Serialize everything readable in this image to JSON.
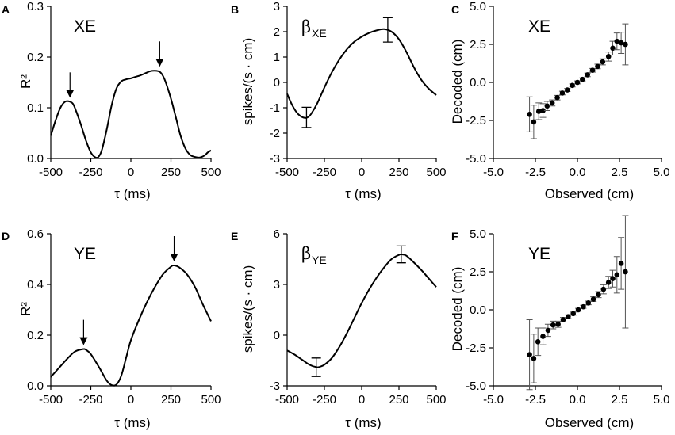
{
  "chart_data": [
    {
      "id": "A",
      "type": "line",
      "name": "XE",
      "xlabel": "τ (ms)",
      "ylabel": "R²",
      "xlim": [
        -500,
        500
      ],
      "ylim": [
        0,
        0.3
      ],
      "xticks": [
        -500,
        -250,
        0,
        250,
        500
      ],
      "xtick_labels": [
        "-500",
        "-250",
        "0",
        "250",
        "500"
      ],
      "yticks": [
        0,
        0.1,
        0.2,
        0.3
      ],
      "ytick_labels": [
        "0.0",
        "0.1",
        "0.2",
        "0.3"
      ],
      "series": [
        {
          "name": "R²",
          "x": [
            -500,
            -470,
            -440,
            -410,
            -380,
            -360,
            -340,
            -310,
            -280,
            -250,
            -220,
            -200,
            -180,
            -150,
            -120,
            -90,
            -60,
            -30,
            0,
            30,
            60,
            90,
            120,
            150,
            180,
            200,
            220,
            250,
            280,
            310,
            340,
            370,
            400,
            430,
            460,
            480,
            500
          ],
          "y": [
            0.045,
            0.075,
            0.1,
            0.112,
            0.112,
            0.107,
            0.092,
            0.065,
            0.035,
            0.012,
            0.002,
            0.004,
            0.018,
            0.058,
            0.105,
            0.138,
            0.152,
            0.156,
            0.158,
            0.161,
            0.164,
            0.168,
            0.172,
            0.173,
            0.171,
            0.163,
            0.148,
            0.118,
            0.082,
            0.045,
            0.02,
            0.007,
            0.003,
            0.002,
            0.006,
            0.012,
            0.016
          ]
        }
      ],
      "arrows": [
        {
          "x": -380,
          "y": 0.112
        },
        {
          "x": 180,
          "y": 0.173
        }
      ]
    },
    {
      "id": "B",
      "type": "line",
      "name": "β",
      "name_sub": "XE",
      "xlabel": "τ (ms)",
      "ylabel": "spikes/(s · cm)",
      "xlim": [
        -500,
        500
      ],
      "ylim": [
        -3,
        3
      ],
      "xticks": [
        -500,
        -250,
        0,
        250,
        500
      ],
      "xtick_labels": [
        "-500",
        "-250",
        "0",
        "250",
        "500"
      ],
      "yticks": [
        -3,
        -2,
        -1,
        0,
        1,
        2,
        3
      ],
      "ytick_labels": [
        "-3",
        "-2",
        "-1",
        "0",
        "1",
        "2",
        "3"
      ],
      "series": [
        {
          "name": "beta",
          "x": [
            -500,
            -470,
            -440,
            -410,
            -380,
            -360,
            -340,
            -300,
            -250,
            -200,
            -150,
            -100,
            -50,
            0,
            50,
            100,
            150,
            200,
            250,
            300,
            350,
            400,
            450,
            500
          ],
          "y": [
            -0.45,
            -0.85,
            -1.15,
            -1.33,
            -1.4,
            -1.37,
            -1.25,
            -0.85,
            -0.2,
            0.4,
            0.9,
            1.3,
            1.6,
            1.8,
            1.95,
            2.05,
            2.1,
            2.0,
            1.7,
            1.2,
            0.6,
            0.1,
            -0.25,
            -0.5
          ]
        }
      ],
      "errorbars": [
        {
          "x": -370,
          "y": -1.38,
          "err": 0.4
        },
        {
          "x": 175,
          "y": 2.07,
          "err": 0.48
        }
      ]
    },
    {
      "id": "C",
      "type": "scatter",
      "name": "XE",
      "xlabel": "Observed (cm)",
      "ylabel": "Decoded (cm)",
      "xlim": [
        -5,
        5
      ],
      "ylim": [
        -5,
        5
      ],
      "xticks": [
        -5,
        -2.5,
        0,
        2.5,
        5
      ],
      "xtick_labels": [
        "-5.0",
        "-2.5",
        "0.0",
        "2.5",
        "5.0"
      ],
      "yticks": [
        -5,
        -2.5,
        0,
        2.5,
        5
      ],
      "ytick_labels": [
        "-5.0",
        "-2.5",
        "0.0",
        "2.5",
        "5.0"
      ],
      "points": [
        {
          "x": -2.85,
          "y": -2.1,
          "err": 1.15
        },
        {
          "x": -2.6,
          "y": -2.6,
          "err": 1.1
        },
        {
          "x": -2.3,
          "y": -1.9,
          "err": 0.55
        },
        {
          "x": -2.05,
          "y": -1.85,
          "err": 0.45
        },
        {
          "x": -1.8,
          "y": -1.55,
          "err": 0.3
        },
        {
          "x": -1.5,
          "y": -1.35,
          "err": 0.2
        },
        {
          "x": -1.2,
          "y": -1.0,
          "err": 0.15
        },
        {
          "x": -0.9,
          "y": -0.7,
          "err": 0.12
        },
        {
          "x": -0.6,
          "y": -0.5,
          "err": 0.1
        },
        {
          "x": -0.3,
          "y": -0.2,
          "err": 0.1
        },
        {
          "x": 0.0,
          "y": 0.0,
          "err": 0.1
        },
        {
          "x": 0.3,
          "y": 0.2,
          "err": 0.1
        },
        {
          "x": 0.6,
          "y": 0.5,
          "err": 0.12
        },
        {
          "x": 0.9,
          "y": 0.8,
          "err": 0.12
        },
        {
          "x": 1.2,
          "y": 1.05,
          "err": 0.15
        },
        {
          "x": 1.5,
          "y": 1.35,
          "err": 0.2
        },
        {
          "x": 1.85,
          "y": 1.7,
          "err": 0.3
        },
        {
          "x": 2.1,
          "y": 2.25,
          "err": 0.45
        },
        {
          "x": 2.35,
          "y": 2.7,
          "err": 0.55
        },
        {
          "x": 2.6,
          "y": 2.6,
          "err": 0.7
        },
        {
          "x": 2.85,
          "y": 2.5,
          "err": 1.35
        }
      ]
    },
    {
      "id": "D",
      "type": "line",
      "name": "YE",
      "xlabel": "τ (ms)",
      "ylabel": "R²",
      "xlim": [
        -500,
        500
      ],
      "ylim": [
        0,
        0.6
      ],
      "xticks": [
        -500,
        -250,
        0,
        250,
        500
      ],
      "xtick_labels": [
        "-500",
        "-250",
        "0",
        "250",
        "500"
      ],
      "yticks": [
        0,
        0.2,
        0.4,
        0.6
      ],
      "ytick_labels": [
        "0.0",
        "0.2",
        "0.4",
        "0.6"
      ],
      "series": [
        {
          "name": "R²",
          "x": [
            -500,
            -450,
            -400,
            -350,
            -300,
            -280,
            -250,
            -200,
            -150,
            -120,
            -90,
            -60,
            -30,
            0,
            50,
            100,
            150,
            200,
            250,
            270,
            300,
            350,
            400,
            450,
            500
          ],
          "y": [
            0.035,
            0.07,
            0.105,
            0.135,
            0.145,
            0.142,
            0.125,
            0.075,
            0.02,
            0.003,
            0.005,
            0.04,
            0.11,
            0.18,
            0.26,
            0.33,
            0.39,
            0.44,
            0.47,
            0.475,
            0.468,
            0.44,
            0.39,
            0.32,
            0.255
          ]
        }
      ],
      "arrows": [
        {
          "x": -295,
          "y": 0.145
        },
        {
          "x": 270,
          "y": 0.475
        }
      ]
    },
    {
      "id": "E",
      "type": "line",
      "name": "β",
      "name_sub": "YE",
      "xlabel": "τ (ms)",
      "ylabel": "spikes/(s · cm)",
      "xlim": [
        -500,
        500
      ],
      "ylim": [
        -3,
        6
      ],
      "xticks": [
        -500,
        -250,
        0,
        250,
        500
      ],
      "xtick_labels": [
        "-500",
        "-250",
        "0",
        "250",
        "500"
      ],
      "yticks": [
        -3,
        0,
        3,
        6
      ],
      "ytick_labels": [
        "-3",
        "0",
        "3",
        "6"
      ],
      "series": [
        {
          "name": "beta",
          "x": [
            -500,
            -450,
            -400,
            -350,
            -300,
            -280,
            -250,
            -200,
            -150,
            -100,
            -50,
            0,
            50,
            100,
            150,
            200,
            250,
            270,
            300,
            350,
            400,
            450,
            500
          ],
          "y": [
            -0.9,
            -1.15,
            -1.45,
            -1.75,
            -1.9,
            -1.87,
            -1.75,
            -1.35,
            -0.7,
            0.1,
            1.0,
            1.9,
            2.7,
            3.4,
            4.0,
            4.5,
            4.75,
            4.78,
            4.7,
            4.3,
            3.85,
            3.35,
            2.85
          ]
        }
      ],
      "errorbars": [
        {
          "x": -305,
          "y": -1.9,
          "err": 0.55
        },
        {
          "x": 265,
          "y": 4.78,
          "err": 0.5
        }
      ]
    },
    {
      "id": "F",
      "type": "scatter",
      "name": "YE",
      "xlabel": "Observed (cm)",
      "ylabel": "Decoded (cm)",
      "xlim": [
        -5,
        5
      ],
      "ylim": [
        -5,
        5
      ],
      "xticks": [
        -5,
        -2.5,
        0,
        2.5,
        5
      ],
      "xtick_labels": [
        "-5.0",
        "-2.5",
        "0.0",
        "2.5",
        "5.0"
      ],
      "yticks": [
        -5,
        -2.5,
        0,
        2.5,
        5
      ],
      "ytick_labels": [
        "-5.0",
        "-2.5",
        "0.0",
        "2.5",
        "5.0"
      ],
      "points": [
        {
          "x": -2.85,
          "y": -2.95,
          "err": 2.3
        },
        {
          "x": -2.6,
          "y": -3.2,
          "err": 1.6
        },
        {
          "x": -2.35,
          "y": -2.1,
          "err": 0.9
        },
        {
          "x": -2.05,
          "y": -1.75,
          "err": 0.55
        },
        {
          "x": -1.75,
          "y": -1.35,
          "err": 0.4
        },
        {
          "x": -1.45,
          "y": -1.0,
          "err": 0.25
        },
        {
          "x": -1.15,
          "y": -0.95,
          "err": 0.2
        },
        {
          "x": -0.85,
          "y": -0.65,
          "err": 0.15
        },
        {
          "x": -0.55,
          "y": -0.45,
          "err": 0.12
        },
        {
          "x": -0.25,
          "y": -0.25,
          "err": 0.1
        },
        {
          "x": 0.05,
          "y": 0.0,
          "err": 0.1
        },
        {
          "x": 0.35,
          "y": 0.2,
          "err": 0.1
        },
        {
          "x": 0.65,
          "y": 0.45,
          "err": 0.12
        },
        {
          "x": 0.95,
          "y": 0.7,
          "err": 0.15
        },
        {
          "x": 1.25,
          "y": 1.0,
          "err": 0.2
        },
        {
          "x": 1.55,
          "y": 1.35,
          "err": 0.3
        },
        {
          "x": 1.85,
          "y": 1.8,
          "err": 0.4
        },
        {
          "x": 2.1,
          "y": 2.05,
          "err": 0.55
        },
        {
          "x": 2.35,
          "y": 2.3,
          "err": 1.2
        },
        {
          "x": 2.6,
          "y": 3.05,
          "err": 1.7
        },
        {
          "x": 2.85,
          "y": 2.5,
          "err": 3.7
        }
      ]
    }
  ]
}
